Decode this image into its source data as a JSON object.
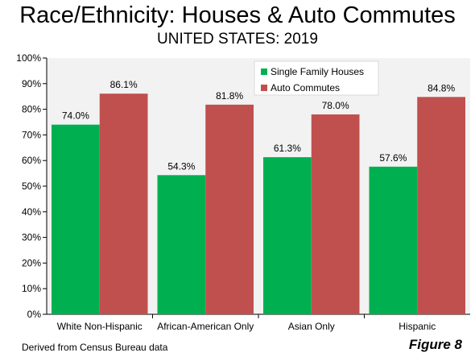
{
  "header": {
    "title": "Race/Ethnicity: Houses & Auto Commutes",
    "subtitle": "UNITED STATES: 2019"
  },
  "footer": {
    "source": "Derived from Census Bureau data",
    "figure_label": "Figure 8"
  },
  "chart_data": {
    "type": "bar",
    "title": "Race/Ethnicity: Houses & Auto Commutes",
    "subtitle": "UNITED STATES: 2019",
    "categories": [
      "White Non-Hispanic",
      "African-American Only",
      "Asian Only",
      "Hispanic"
    ],
    "series": [
      {
        "name": "Single Family Houses",
        "values": [
          74.0,
          54.3,
          61.3,
          57.6
        ],
        "labels": [
          "74.0%",
          "54.3%",
          "61.3%",
          "57.6%"
        ],
        "color": "#00b050"
      },
      {
        "name": "Auto Commutes",
        "values": [
          86.1,
          81.8,
          78.0,
          84.8
        ],
        "labels": [
          "86.1%",
          "81.8%",
          "78.0%",
          "84.8%"
        ],
        "color": "#c0504d"
      }
    ],
    "ylim": [
      0,
      100
    ],
    "yticks": [
      0,
      10,
      20,
      30,
      40,
      50,
      60,
      70,
      80,
      90,
      100
    ],
    "ytick_labels": [
      "0%",
      "10%",
      "20%",
      "30%",
      "40%",
      "50%",
      "60%",
      "70%",
      "80%",
      "90%",
      "100%"
    ],
    "grid": false,
    "legend_position": "top-right-inside",
    "plot_background": "#f2f2f2"
  }
}
